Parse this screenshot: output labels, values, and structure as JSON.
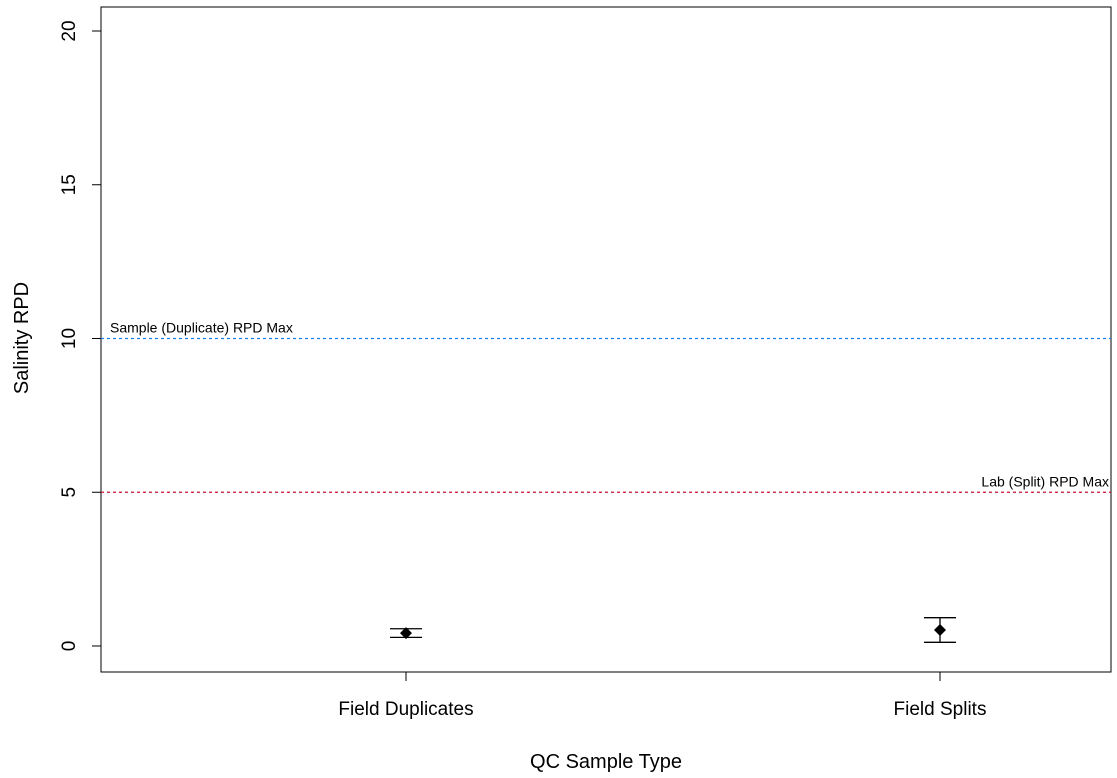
{
  "chart_data": {
    "type": "scatter",
    "title": "",
    "xlabel": "QC Sample Type",
    "ylabel": "Salinity RPD",
    "ylim": [
      -0.5,
      20.5
    ],
    "yticks": [
      0,
      5,
      10,
      15,
      20
    ],
    "categories": [
      "Field Duplicates",
      "Field Splits"
    ],
    "points": [
      {
        "category": "Field Duplicates",
        "value": 0.42,
        "lower": 0.28,
        "upper": 0.56
      },
      {
        "category": "Field Splits",
        "value": 0.52,
        "lower": 0.12,
        "upper": 0.92
      }
    ],
    "reference_lines": [
      {
        "label": "Sample (Duplicate) RPD Max",
        "value": 10,
        "color": "#1e7ff0",
        "label_position": "left"
      },
      {
        "label": "Lab (Split) RPD Max",
        "value": 5,
        "color": "#c8102e",
        "label_position": "right"
      }
    ],
    "grid": false,
    "legend": "none",
    "marker": "diamond"
  }
}
